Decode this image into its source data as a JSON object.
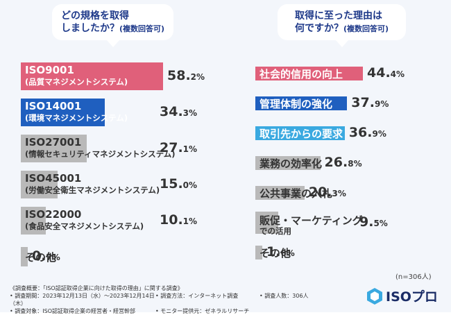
{
  "left": {
    "question_line1": "どの規格を取得",
    "question_line2": "しましたか？",
    "question_note": "(複数回答可)",
    "items": [
      {
        "label": "ISO9001",
        "sub": "(品質マネジメントシステム)",
        "value_int": "58.",
        "value_dec": "2%",
        "color": "#e0607a",
        "text_color": "#ffffff"
      },
      {
        "label": "ISO14001",
        "sub": "(環境マネジメントシステム)",
        "value_int": "34.",
        "value_dec": "3%",
        "color": "#1f5fbf",
        "text_color": "#ffffff"
      },
      {
        "label": "ISO27001",
        "sub": "(情報セキュリティマネジメントシステム)",
        "value_int": "27.",
        "value_dec": "1%",
        "color": "#b9b9b9",
        "text_color": "#333333"
      },
      {
        "label": "ISO45001",
        "sub": "(労働安全衛生マネジメントシステム)",
        "value_int": "15.",
        "value_dec": "0%",
        "color": "#b9b9b9",
        "text_color": "#333333"
      },
      {
        "label": "ISO22000",
        "sub": "(食品安全マネジメントシステム)",
        "value_int": "10.",
        "value_dec": "1%",
        "color": "#b9b9b9",
        "text_color": "#333333"
      },
      {
        "label": "その他",
        "sub": "",
        "value_int": "0.",
        "value_dec": "7%",
        "color": "#b9b9b9",
        "text_color": "#333333"
      }
    ]
  },
  "right": {
    "question_line1": "取得に至った理由は",
    "question_line2": "何ですか？",
    "question_note": "(複数回答可)",
    "items": [
      {
        "label": "社会的信用の向上",
        "sub": "",
        "value_int": "44.",
        "value_dec": "4%",
        "color": "#e0607a",
        "text_color": "#ffffff"
      },
      {
        "label": "管理体制の強化",
        "sub": "",
        "value_int": "37.",
        "value_dec": "9%",
        "color": "#1f5fbf",
        "text_color": "#ffffff"
      },
      {
        "label": "取引先からの要求",
        "sub": "",
        "value_int": "36.",
        "value_dec": "9%",
        "color": "#3aa9e0",
        "text_color": "#ffffff"
      },
      {
        "label": "業務の効率化",
        "sub": "",
        "value_int": "26.",
        "value_dec": "8%",
        "color": "#b9b9b9",
        "text_color": "#333333"
      },
      {
        "label": "公共事業の入札",
        "sub": "",
        "value_int": "20.",
        "value_dec": "3%",
        "color": "#b9b9b9",
        "text_color": "#333333"
      },
      {
        "label": "販促・マーケティング",
        "sub": "での活用",
        "value_int": "9.",
        "value_dec": "5%",
        "color": "#b9b9b9",
        "text_color": "#333333"
      },
      {
        "label": "その他",
        "sub": "",
        "value_int": "1.",
        "value_dec": "6%",
        "color": "#b9b9b9",
        "text_color": "#333333"
      }
    ]
  },
  "sample_note": "(n=306人)",
  "notes": [
    "《調査概要：「ISO認証取得企業に向けた取得の理由」に関する調査》",
    "• 調査期間：2023年12月13日（水）～2023年12月14日（木）",
    "• 調査方法：インターネット調査",
    "• 調査人数：306人",
    "• 調査対象：ISO認証取得企業の経営者・経営幹部",
    "• モニター提供元：ゼネラルリサーチ"
  ],
  "logo_text": "ISOプロ",
  "chart_data": [
    {
      "type": "bar",
      "title": "どの規格を取得しましたか？(複数回答可)",
      "categories": [
        "ISO9001 (品質マネジメントシステム)",
        "ISO14001 (環境マネジメントシステム)",
        "ISO27001 (情報セキュリティマネジメントシステム)",
        "ISO45001 (労働安全衛生マネジメントシステム)",
        "ISO22000 (食品安全マネジメントシステム)",
        "その他"
      ],
      "values": [
        58.2,
        34.3,
        27.1,
        15.0,
        10.1,
        0.7
      ],
      "unit": "%"
    },
    {
      "type": "bar",
      "title": "取得に至った理由は何ですか？(複数回答可)",
      "categories": [
        "社会的信用の向上",
        "管理体制の強化",
        "取引先からの要求",
        "業務の効率化",
        "公共事業の入札",
        "販促・マーケティングでの活用",
        "その他"
      ],
      "values": [
        44.4,
        37.9,
        36.9,
        26.8,
        20.3,
        9.5,
        1.6
      ],
      "unit": "%"
    }
  ]
}
